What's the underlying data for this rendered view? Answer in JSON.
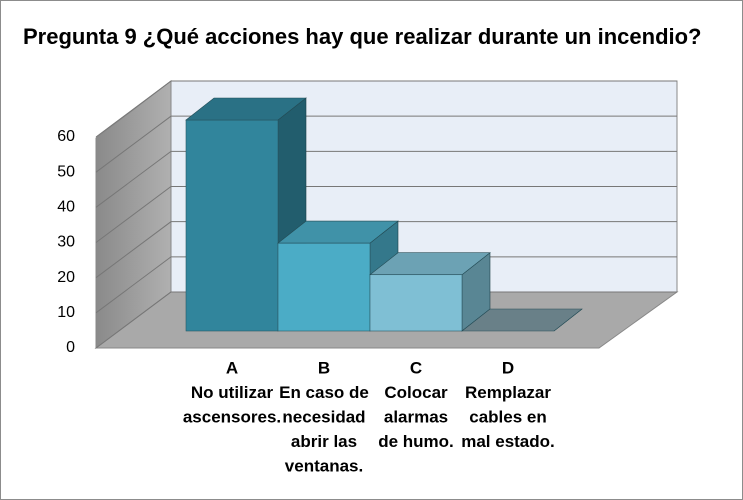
{
  "chart_data": {
    "type": "bar3d",
    "title": "Pregunta 9 ¿Qué acciones hay que realizar durante un incendio?",
    "categories": [
      [
        "A",
        "No utilizar",
        "ascensores."
      ],
      [
        "B",
        "En caso de",
        "necesidad",
        "abrir las",
        "ventanas."
      ],
      [
        "C",
        "Colocar",
        "alarmas",
        "de humo."
      ],
      [
        "D",
        "Remplazar",
        "cables en",
        "mal estado."
      ]
    ],
    "values": [
      60,
      25,
      16,
      0
    ],
    "colors": [
      "#31859c",
      "#4bacc6",
      "#7fbfd4",
      "#7b96a0"
    ],
    "ylim": [
      0,
      60
    ],
    "yticks": [
      0,
      10,
      20,
      30,
      40,
      50,
      60
    ],
    "grid": true
  }
}
